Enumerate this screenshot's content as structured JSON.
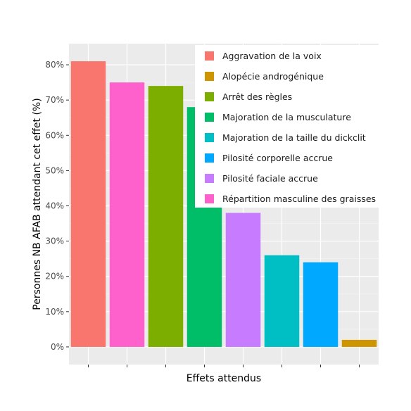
{
  "chart_data": {
    "type": "bar",
    "xlabel": "Effets attendus",
    "ylabel": "Personnes NB AFAB attendant cet effet (%)",
    "ylim": [
      -5,
      86
    ],
    "yticks": [
      0,
      10,
      20,
      30,
      40,
      50,
      60,
      70,
      80
    ],
    "ytick_labels": [
      "0%",
      "10%",
      "20%",
      "30%",
      "40%",
      "50%",
      "60%",
      "70%",
      "80%"
    ],
    "grid": true,
    "legend_position": "top-right (inside plot)",
    "bars": [
      {
        "category": "Aggravation de la voix",
        "value": 81,
        "color": "#F8766D"
      },
      {
        "category": "Répartition masculine des graisses",
        "value": 75,
        "color": "#FF61CC"
      },
      {
        "category": "Arrêt des règles",
        "value": 74,
        "color": "#7CAE00"
      },
      {
        "category": "Majoration de la musculature",
        "value": 68,
        "color": "#00BE67"
      },
      {
        "category": "Pilosité faciale accrue",
        "value": 38,
        "color": "#C77CFF"
      },
      {
        "category": "Majoration de la taille du dickclit",
        "value": 26,
        "color": "#00BFC4"
      },
      {
        "category": "Pilosité corporelle accrue",
        "value": 24,
        "color": "#00A9FF"
      },
      {
        "category": "Alopécie androgénique",
        "value": 2,
        "color": "#CD9600"
      }
    ],
    "legend": [
      {
        "label": "Aggravation de la voix",
        "color": "#F8766D"
      },
      {
        "label": "Alopécie androgénique",
        "color": "#CD9600"
      },
      {
        "label": "Arrêt des règles",
        "color": "#7CAE00"
      },
      {
        "label": "Majoration de la musculature",
        "color": "#00BE67"
      },
      {
        "label": "Majoration de la taille du dickclit",
        "color": "#00BFC4"
      },
      {
        "label": "Pilosité corporelle accrue",
        "color": "#00A9FF"
      },
      {
        "label": "Pilosité faciale accrue",
        "color": "#C77CFF"
      },
      {
        "label": "Répartition masculine des graisses",
        "color": "#FF61CC"
      }
    ]
  },
  "colors": {
    "panel_background": "#EBEBEB",
    "grid_major": "#FFFFFF",
    "grid_minor": "#F5F5F5",
    "legend_background": "#FFFFFF"
  }
}
